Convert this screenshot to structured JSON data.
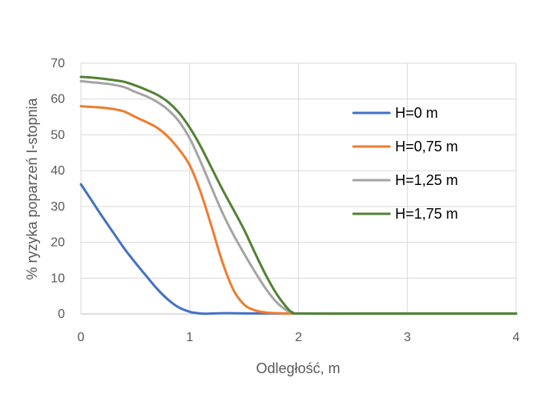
{
  "chart_data": {
    "type": "line",
    "title": "",
    "xlabel": "Odległość, m",
    "ylabel": "% ryzyka poparzeń I-stopnia",
    "xlim": [
      0,
      4
    ],
    "ylim": [
      0,
      70
    ],
    "x_ticks": [
      "0",
      "1",
      "2",
      "3",
      "4"
    ],
    "y_ticks": [
      "0",
      "10",
      "20",
      "30",
      "40",
      "50",
      "60",
      "70"
    ],
    "grid": "vertical and horizontal",
    "legend_position": "right",
    "series": [
      {
        "name": "H=0 m",
        "color": "#4472C4",
        "x": [
          0,
          0.1,
          0.2,
          0.3,
          0.4,
          0.5,
          0.6,
          0.7,
          0.8,
          0.9,
          1.0,
          1.05,
          1.1,
          1.15,
          1.2,
          1.3,
          1.5,
          2.0,
          3.0,
          4.0
        ],
        "y": [
          36.2,
          31.6,
          27.0,
          22.6,
          18.2,
          14.3,
          10.6,
          7.0,
          4.0,
          1.8,
          0.6,
          0.3,
          0.1,
          0.05,
          0.1,
          0.2,
          0.15,
          0.1,
          0.05,
          0.05
        ]
      },
      {
        "name": "H=0,75 m",
        "color": "#ED7D31",
        "x": [
          0,
          0.1,
          0.2,
          0.3,
          0.4,
          0.5,
          0.6,
          0.7,
          0.8,
          0.9,
          1.0,
          1.1,
          1.2,
          1.3,
          1.4,
          1.5,
          1.6,
          1.7,
          1.8,
          1.9,
          2.0,
          2.5,
          3.0,
          4.0
        ],
        "y": [
          58.0,
          57.8,
          57.6,
          57.2,
          56.5,
          55.0,
          53.6,
          52.0,
          49.5,
          46.0,
          41.5,
          34.0,
          24.5,
          14.5,
          6.8,
          2.6,
          1.0,
          0.4,
          0.2,
          0.1,
          0.1,
          0.1,
          0.1,
          0.1
        ]
      },
      {
        "name": "H=1,25 m",
        "color": "#A5A5A5",
        "x": [
          0,
          0.1,
          0.2,
          0.3,
          0.4,
          0.5,
          0.6,
          0.7,
          0.8,
          0.9,
          1.0,
          1.1,
          1.2,
          1.3,
          1.4,
          1.5,
          1.6,
          1.7,
          1.8,
          1.9,
          1.95,
          2.0,
          2.5,
          3.0,
          4.0
        ],
        "y": [
          65.0,
          64.7,
          64.4,
          64.0,
          63.3,
          62.0,
          60.8,
          59.2,
          57.0,
          53.8,
          49.0,
          42.5,
          35.3,
          28.3,
          22.2,
          16.8,
          11.7,
          7.0,
          3.2,
          0.8,
          0.2,
          0.1,
          0.1,
          0.1,
          0.1
        ]
      },
      {
        "name": "H=1,75 m",
        "color": "#548235",
        "x": [
          0,
          0.1,
          0.2,
          0.3,
          0.4,
          0.5,
          0.6,
          0.7,
          0.8,
          0.9,
          1.0,
          1.1,
          1.2,
          1.3,
          1.4,
          1.5,
          1.6,
          1.7,
          1.8,
          1.9,
          1.95,
          2.0,
          2.5,
          3.0,
          4.0
        ],
        "y": [
          66.2,
          66.0,
          65.7,
          65.3,
          64.8,
          63.8,
          62.6,
          61.2,
          59.2,
          56.2,
          52.0,
          46.8,
          40.8,
          34.8,
          29.2,
          23.5,
          17.0,
          10.8,
          5.5,
          1.5,
          0.3,
          0.1,
          0.1,
          0.1,
          0.1
        ]
      }
    ]
  }
}
